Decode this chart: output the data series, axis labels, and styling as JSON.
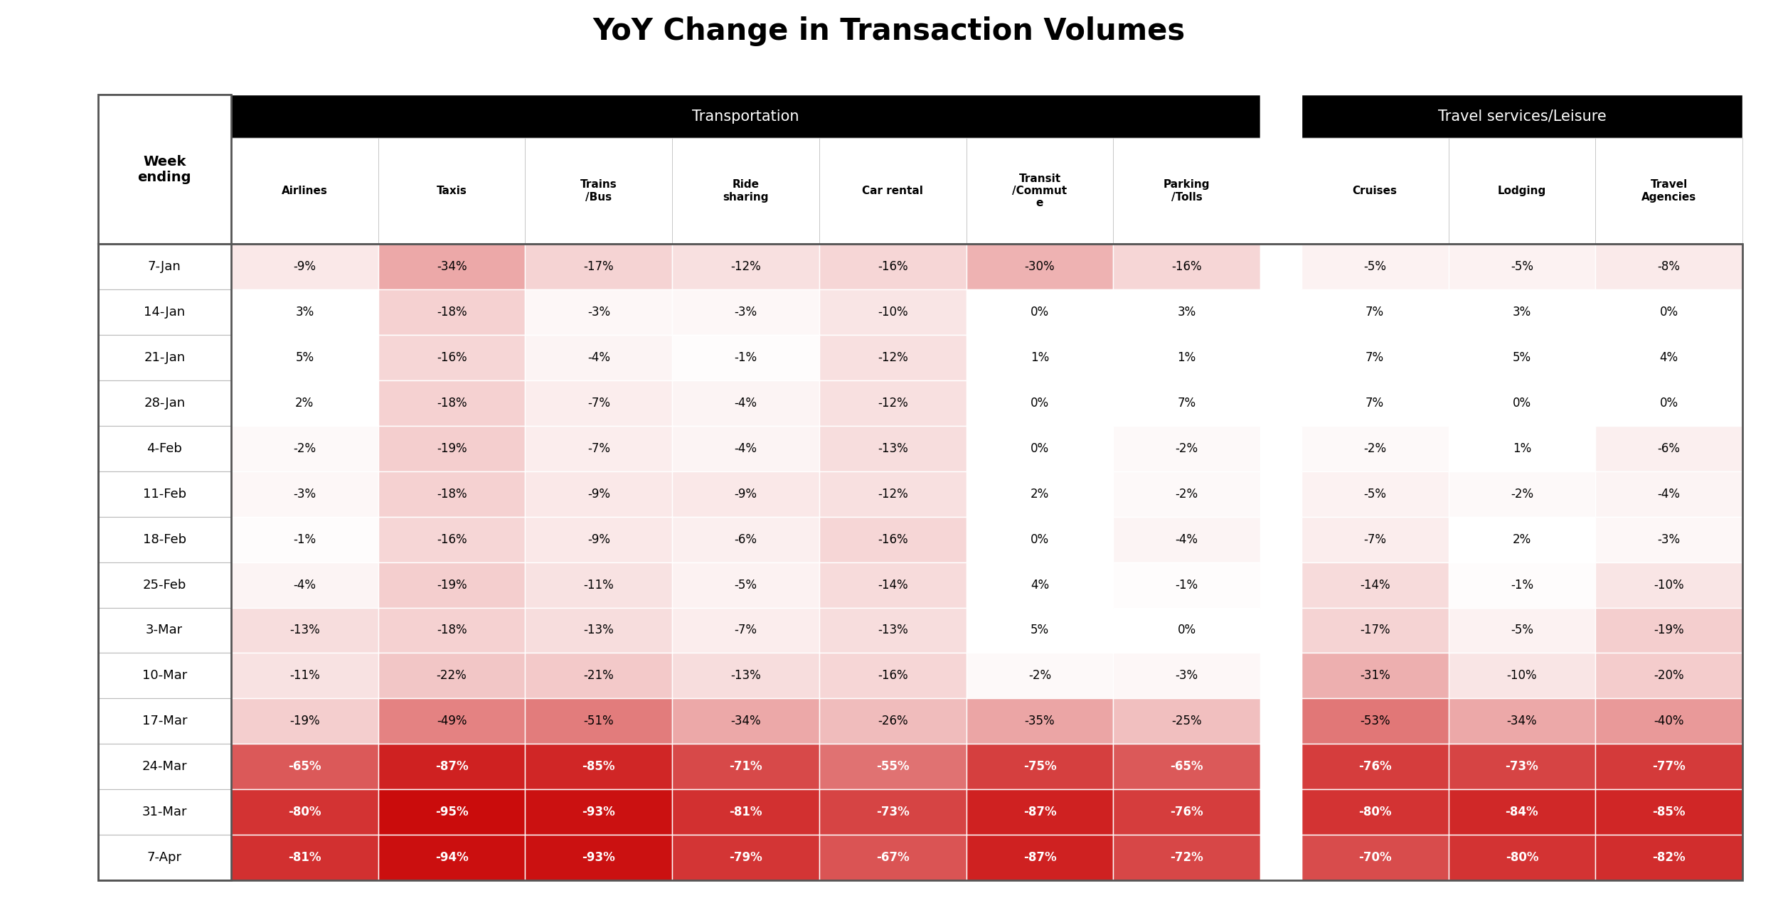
{
  "title": "YoY Change in Transaction Volumes",
  "header_group1": "Transportation",
  "header_group2": "Travel services/Leisure",
  "col_headers": [
    "Airlines",
    "Taxis",
    "Trains\n/Bus",
    "Ride\nsharing",
    "Car rental",
    "Transit\n/Commut\ne",
    "Parking\n/Tolls",
    "Cruises",
    "Lodging",
    "Travel\nAgencies"
  ],
  "row_labels": [
    "7-Jan",
    "14-Jan",
    "21-Jan",
    "28-Jan",
    "4-Feb",
    "11-Feb",
    "18-Feb",
    "25-Feb",
    "3-Mar",
    "10-Mar",
    "17-Mar",
    "24-Mar",
    "31-Mar",
    "7-Apr"
  ],
  "data": [
    [
      -9,
      -34,
      -17,
      -12,
      -16,
      -30,
      -16,
      -5,
      -5,
      -8
    ],
    [
      3,
      -18,
      -3,
      -3,
      -10,
      0,
      3,
      7,
      3,
      0
    ],
    [
      5,
      -16,
      -4,
      -1,
      -12,
      1,
      1,
      7,
      5,
      4
    ],
    [
      2,
      -18,
      -7,
      -4,
      -12,
      0,
      7,
      7,
      0,
      0
    ],
    [
      -2,
      -19,
      -7,
      -4,
      -13,
      0,
      -2,
      -2,
      1,
      -6
    ],
    [
      -3,
      -18,
      -9,
      -9,
      -12,
      2,
      -2,
      -5,
      -2,
      -4
    ],
    [
      -1,
      -16,
      -9,
      -6,
      -16,
      0,
      -4,
      -7,
      2,
      -3
    ],
    [
      -4,
      -19,
      -11,
      -5,
      -14,
      4,
      -1,
      -14,
      -1,
      -10
    ],
    [
      -13,
      -18,
      -13,
      -7,
      -13,
      5,
      0,
      -17,
      -5,
      -19
    ],
    [
      -11,
      -22,
      -21,
      -13,
      -16,
      -2,
      -3,
      -31,
      -10,
      -20
    ],
    [
      -19,
      -49,
      -51,
      -34,
      -26,
      -35,
      -25,
      -53,
      -34,
      -40
    ],
    [
      -65,
      -87,
      -85,
      -71,
      -55,
      -75,
      -65,
      -76,
      -73,
      -77
    ],
    [
      -80,
      -95,
      -93,
      -81,
      -73,
      -87,
      -76,
      -80,
      -84,
      -85
    ],
    [
      -81,
      -94,
      -93,
      -79,
      -67,
      -87,
      -72,
      -70,
      -80,
      -82
    ]
  ],
  "text_values": [
    [
      "-9%",
      "-34%",
      "-17%",
      "-12%",
      "-16%",
      "-30%",
      "-16%",
      "-5%",
      "-5%",
      "-8%"
    ],
    [
      "3%",
      "-18%",
      "-3%",
      "-3%",
      "-10%",
      "0%",
      "3%",
      "7%",
      "3%",
      "0%"
    ],
    [
      "5%",
      "-16%",
      "-4%",
      "-1%",
      "-12%",
      "1%",
      "1%",
      "7%",
      "5%",
      "4%"
    ],
    [
      "2%",
      "-18%",
      "-7%",
      "-4%",
      "-12%",
      "0%",
      "7%",
      "7%",
      "0%",
      "0%"
    ],
    [
      "-2%",
      "-19%",
      "-7%",
      "-4%",
      "-13%",
      "0%",
      "-2%",
      "-2%",
      "1%",
      "-6%"
    ],
    [
      "-3%",
      "-18%",
      "-9%",
      "-9%",
      "-12%",
      "2%",
      "-2%",
      "-5%",
      "-2%",
      "-4%"
    ],
    [
      "-1%",
      "-16%",
      "-9%",
      "-6%",
      "-16%",
      "0%",
      "-4%",
      "-7%",
      "2%",
      "-3%"
    ],
    [
      "-4%",
      "-19%",
      "-11%",
      "-5%",
      "-14%",
      "4%",
      "-1%",
      "-14%",
      "-1%",
      "-10%"
    ],
    [
      "-13%",
      "-18%",
      "-13%",
      "-7%",
      "-13%",
      "5%",
      "0%",
      "-17%",
      "-5%",
      "-19%"
    ],
    [
      "-11%",
      "-22%",
      "-21%",
      "-13%",
      "-16%",
      "-2%",
      "-3%",
      "-31%",
      "-10%",
      "-20%"
    ],
    [
      "-19%",
      "-49%",
      "-51%",
      "-34%",
      "-26%",
      "-35%",
      "-25%",
      "-53%",
      "-34%",
      "-40%"
    ],
    [
      "-65%",
      "-87%",
      "-85%",
      "-71%",
      "-55%",
      "-75%",
      "-65%",
      "-76%",
      "-73%",
      "-77%"
    ],
    [
      "-80%",
      "-95%",
      "-93%",
      "-81%",
      "-73%",
      "-87%",
      "-76%",
      "-80%",
      "-84%",
      "-85%"
    ],
    [
      "-81%",
      "-94%",
      "-93%",
      "-79%",
      "-67%",
      "-87%",
      "-72%",
      "-70%",
      "-80%",
      "-82%"
    ]
  ],
  "background_color": "#ffffff",
  "header_bg_color": "#000000",
  "header_text_color": "#ffffff"
}
